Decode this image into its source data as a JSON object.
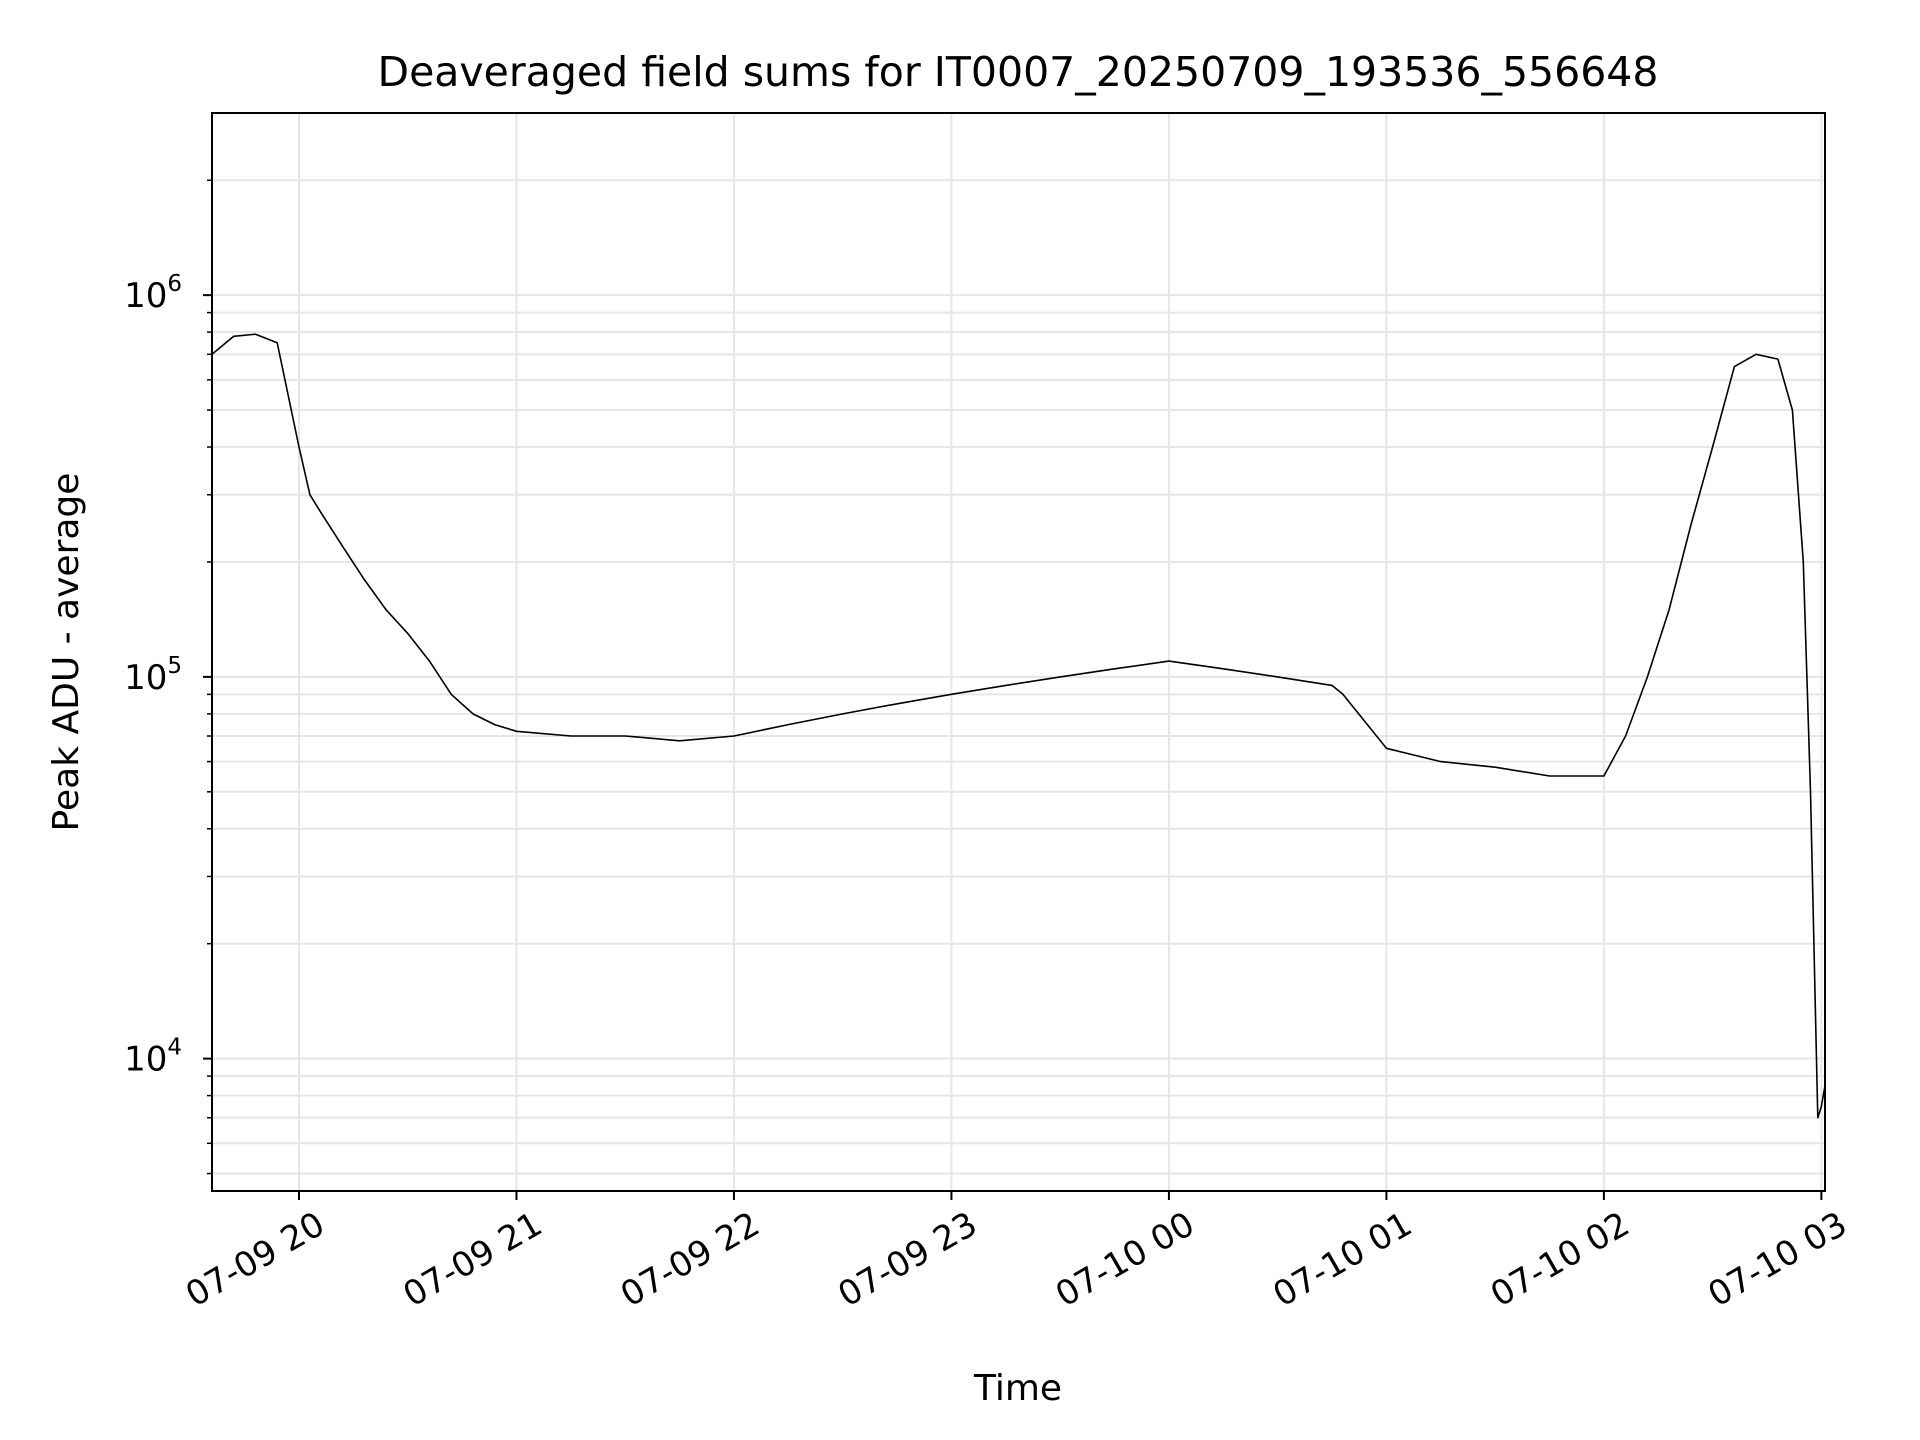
{
  "chart_data": {
    "type": "line",
    "title": "Deaveraged field sums for IT0007_20250709_193536_556648",
    "xlabel": "Time",
    "ylabel": "Peak ADU - average",
    "yscale": "log",
    "ylim": [
      4500,
      3000000
    ],
    "xlim": [
      "07-09 19:36",
      "07-10 03:01"
    ],
    "grid": true,
    "line_color": "#000000",
    "grid_color": "#e6e6e6",
    "x_ticks": [
      {
        "t": "07-09 20:00",
        "label": "07-09 20"
      },
      {
        "t": "07-09 21:00",
        "label": "07-09 21"
      },
      {
        "t": "07-09 22:00",
        "label": "07-09 22"
      },
      {
        "t": "07-09 23:00",
        "label": "07-09 23"
      },
      {
        "t": "07-10 00:00",
        "label": "07-10 00"
      },
      {
        "t": "07-10 01:00",
        "label": "07-10 01"
      },
      {
        "t": "07-10 02:00",
        "label": "07-10 02"
      },
      {
        "t": "07-10 03:00",
        "label": "07-10 03"
      }
    ],
    "y_ticks": [
      {
        "value": 10000,
        "base": "10",
        "exp": "4"
      },
      {
        "value": 100000,
        "base": "10",
        "exp": "5"
      },
      {
        "value": 1000000,
        "base": "10",
        "exp": "6"
      }
    ],
    "series": [
      {
        "x": [
          "07-09 19:36",
          "07-09 19:42",
          "07-09 19:48",
          "07-09 19:54",
          "07-09 20:00",
          "07-09 20:03",
          "07-09 20:06",
          "07-09 20:12",
          "07-09 20:18",
          "07-09 20:24",
          "07-09 20:30",
          "07-09 20:36",
          "07-09 20:42",
          "07-09 20:48",
          "07-09 20:54",
          "07-09 21:00",
          "07-09 21:15",
          "07-09 21:30",
          "07-09 21:45",
          "07-09 22:00",
          "07-09 22:15",
          "07-09 22:30",
          "07-09 22:45",
          "07-09 23:00",
          "07-09 23:15",
          "07-09 23:30",
          "07-09 23:45",
          "07-10 00:00",
          "07-10 00:15",
          "07-10 00:30",
          "07-10 00:45",
          "07-10 00:48",
          "07-10 01:00",
          "07-10 01:15",
          "07-10 01:30",
          "07-10 01:45",
          "07-10 02:00",
          "07-10 02:06",
          "07-10 02:12",
          "07-10 02:18",
          "07-10 02:24",
          "07-10 02:30",
          "07-10 02:36",
          "07-10 02:42",
          "07-10 02:48",
          "07-10 02:52",
          "07-10 02:55",
          "07-10 02:57",
          "07-10 02:59",
          "07-10 03:00",
          "07-10 03:01"
        ],
        "y": [
          700000,
          780000,
          790000,
          750000,
          400000,
          300000,
          270000,
          220000,
          180000,
          150000,
          130000,
          110000,
          90000,
          80000,
          75000,
          72000,
          70000,
          70000,
          68000,
          70000,
          75000,
          80000,
          85000,
          90000,
          95000,
          100000,
          105000,
          110000,
          105000,
          100000,
          95000,
          90000,
          65000,
          60000,
          58000,
          55000,
          55000,
          70000,
          100000,
          150000,
          250000,
          400000,
          650000,
          700000,
          680000,
          500000,
          200000,
          50000,
          7000,
          7500,
          8500
        ]
      }
    ]
  }
}
